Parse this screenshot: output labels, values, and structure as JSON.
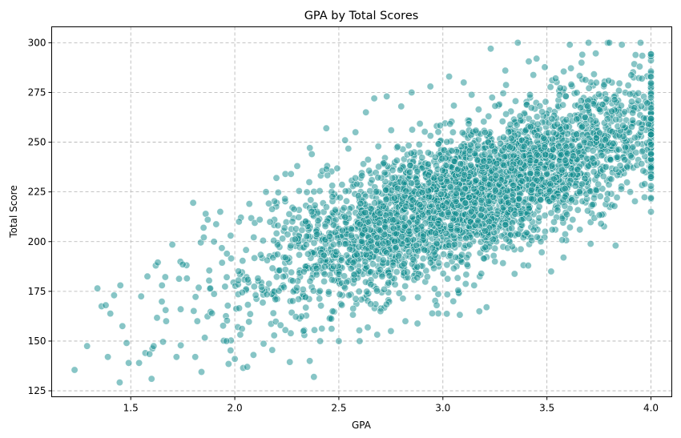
{
  "chart_data": {
    "type": "scatter",
    "title": "GPA by Total Scores",
    "xlabel": "GPA",
    "ylabel": "Total Score",
    "xlim": [
      1.12,
      4.1
    ],
    "ylim": [
      122,
      308
    ],
    "xticks": [
      1.5,
      2.0,
      2.5,
      3.0,
      3.5,
      4.0
    ],
    "xtick_labels": [
      "1.5",
      "2.0",
      "2.5",
      "3.0",
      "3.5",
      "4.0"
    ],
    "yticks": [
      125,
      150,
      175,
      200,
      225,
      250,
      275,
      300
    ],
    "ytick_labels": [
      "125",
      "150",
      "175",
      "200",
      "225",
      "250",
      "275",
      "300"
    ],
    "grid": true,
    "legend": "none",
    "colors": {
      "marker": "#0f8b8d",
      "marker_edge": "#ffffff",
      "grid": "#b0b0b0"
    },
    "marker_opacity": 0.5,
    "trend": {
      "slope": 39.6,
      "intercept": 100,
      "noise_sd": 17,
      "x_cap": 4.0,
      "y_cap": 300
    },
    "series": [
      {
        "points": [
          [
            1.23,
            135.5
          ],
          [
            1.29,
            147.5
          ],
          [
            1.34,
            176.5
          ],
          [
            1.36,
            167.5
          ],
          [
            1.38,
            168
          ],
          [
            1.39,
            142
          ],
          [
            1.42,
            173
          ],
          [
            1.45,
            178
          ],
          [
            1.46,
            157.5
          ],
          [
            1.48,
            149
          ],
          [
            1.49,
            139
          ],
          [
            1.54,
            139
          ],
          [
            1.55,
            172.5
          ],
          [
            1.57,
            144
          ],
          [
            1.58,
            182.5
          ],
          [
            1.59,
            143.5
          ],
          [
            1.6,
            131
          ],
          [
            1.61,
            147.5
          ],
          [
            1.62,
            188
          ],
          [
            1.63,
            189.5
          ],
          [
            1.65,
            178
          ],
          [
            1.67,
            160
          ],
          [
            1.7,
            198.5
          ],
          [
            1.72,
            142
          ],
          [
            1.74,
            166
          ],
          [
            1.75,
            188.5
          ],
          [
            1.77,
            181.5
          ],
          [
            1.8,
            219.5
          ],
          [
            1.81,
            142
          ],
          [
            1.82,
            160
          ],
          [
            1.84,
            134.5
          ],
          [
            1.85,
            207
          ],
          [
            1.86,
            214
          ],
          [
            1.87,
            211
          ],
          [
            1.9,
            200
          ],
          [
            1.93,
            215
          ],
          [
            1.96,
            150
          ],
          [
            1.97,
            138.5
          ],
          [
            1.98,
            203
          ],
          [
            2.0,
            141
          ],
          [
            2.02,
            210
          ],
          [
            2.04,
            136.5
          ],
          [
            2.06,
            137
          ],
          [
            2.07,
            219
          ],
          [
            2.09,
            143
          ],
          [
            2.12,
            211
          ],
          [
            2.15,
            225
          ],
          [
            2.18,
            145.5
          ],
          [
            2.2,
            232
          ],
          [
            2.22,
            158
          ],
          [
            2.27,
            234
          ],
          [
            2.3,
            238
          ],
          [
            2.33,
            155
          ],
          [
            2.36,
            140
          ],
          [
            2.37,
            244
          ],
          [
            2.38,
            132
          ],
          [
            2.41,
            150
          ],
          [
            2.44,
            257
          ],
          [
            2.47,
            165
          ],
          [
            2.5,
            150
          ],
          [
            2.53,
            251
          ],
          [
            2.58,
            255
          ],
          [
            2.6,
            150
          ],
          [
            2.63,
            265
          ],
          [
            2.67,
            272
          ],
          [
            2.7,
            165
          ],
          [
            2.73,
            273
          ],
          [
            2.75,
            155
          ],
          [
            2.8,
            268
          ],
          [
            2.82,
            160
          ],
          [
            2.85,
            275
          ],
          [
            2.88,
            172
          ],
          [
            2.94,
            278
          ],
          [
            2.97,
            168
          ],
          [
            3.03,
            283
          ],
          [
            3.05,
            170
          ],
          [
            3.1,
            280
          ],
          [
            3.15,
            178
          ],
          [
            3.21,
            167
          ],
          [
            3.23,
            297
          ],
          [
            3.25,
            190
          ],
          [
            3.3,
            286
          ],
          [
            3.36,
            300
          ],
          [
            3.41,
            188
          ],
          [
            3.45,
            292
          ],
          [
            3.52,
            185
          ],
          [
            3.58,
            192
          ],
          [
            3.61,
            299
          ],
          [
            3.67,
            294
          ],
          [
            3.7,
            300
          ],
          [
            3.76,
            209
          ],
          [
            3.8,
            300
          ],
          [
            3.83,
            198
          ],
          [
            3.86,
            299
          ],
          [
            3.9,
            225
          ],
          [
            3.95,
            300
          ],
          [
            3.97,
            229
          ],
          [
            4.0,
            215
          ],
          [
            4.0,
            222
          ],
          [
            4.0,
            237
          ]
        ]
      }
    ]
  }
}
